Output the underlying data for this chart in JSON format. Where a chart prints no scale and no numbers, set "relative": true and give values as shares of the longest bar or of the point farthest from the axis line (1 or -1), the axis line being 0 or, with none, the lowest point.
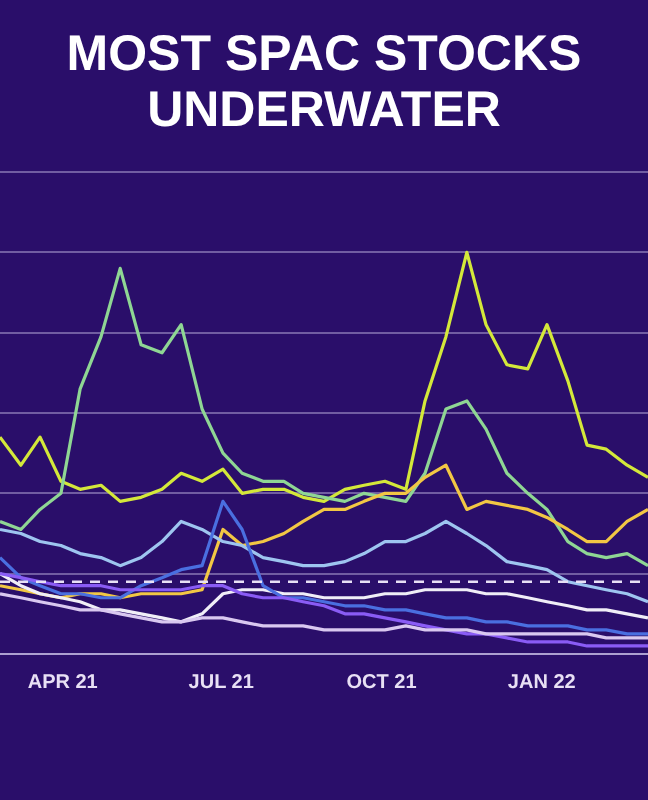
{
  "chart_data": {
    "type": "line",
    "title": "MOST SPAC STOCKS UNDERWATER",
    "relative": true,
    "grid": "y",
    "legend": false,
    "marker": "none",
    "line_style": "solid",
    "x": [
      "2021-02-24",
      "2021-03-08",
      "2021-03-19",
      "2021-03-31",
      "2021-04-11",
      "2021-04-23",
      "2021-05-04",
      "2021-05-16",
      "2021-05-28",
      "2021-06-08",
      "2021-06-20",
      "2021-07-02",
      "2021-07-13",
      "2021-07-25",
      "2021-08-06",
      "2021-08-17",
      "2021-08-29",
      "2021-09-10",
      "2021-09-21",
      "2021-10-03",
      "2021-10-15",
      "2021-10-26",
      "2021-11-07",
      "2021-11-19",
      "2021-11-30",
      "2021-12-12",
      "2021-12-24",
      "2022-01-04",
      "2022-01-16",
      "2022-01-27",
      "2022-02-07",
      "2022-02-19",
      "2022-03-03"
    ],
    "xlim": [
      "2021-02-24",
      "2022-03-03"
    ],
    "xticks": [
      {
        "value": "2021-04-01",
        "label": "APR 21"
      },
      {
        "value": "2021-07-01",
        "label": "JUL 21"
      },
      {
        "value": "2021-10-01",
        "label": "OCT 21"
      },
      {
        "value": "2022-01-01",
        "label": "JAN 22"
      }
    ],
    "series": [
      {
        "color": "#d9c8f0",
        "values": [
          0.15,
          0.14,
          0.13,
          0.12,
          0.11,
          0.11,
          0.1,
          0.09,
          0.08,
          0.08,
          0.09,
          0.09,
          0.08,
          0.07,
          0.07,
          0.07,
          0.06,
          0.06,
          0.06,
          0.06,
          0.07,
          0.06,
          0.06,
          0.06,
          0.05,
          0.05,
          0.05,
          0.05,
          0.05,
          0.05,
          0.04,
          0.04,
          0.04
        ]
      },
      {
        "color": "#8a5cf5",
        "values": [
          0.2,
          0.19,
          0.18,
          0.17,
          0.17,
          0.17,
          0.16,
          0.16,
          0.16,
          0.16,
          0.17,
          0.17,
          0.15,
          0.14,
          0.14,
          0.13,
          0.12,
          0.1,
          0.1,
          0.09,
          0.08,
          0.07,
          0.06,
          0.05,
          0.05,
          0.04,
          0.03,
          0.03,
          0.03,
          0.02,
          0.02,
          0.02,
          0.02
        ]
      },
      {
        "color": "#4a6fe0",
        "values": [
          0.24,
          0.19,
          0.17,
          0.15,
          0.15,
          0.14,
          0.14,
          0.17,
          0.19,
          0.21,
          0.22,
          0.38,
          0.31,
          0.17,
          0.14,
          0.14,
          0.13,
          0.12,
          0.12,
          0.11,
          0.11,
          0.1,
          0.09,
          0.09,
          0.08,
          0.08,
          0.07,
          0.07,
          0.07,
          0.06,
          0.06,
          0.05,
          0.05
        ]
      },
      {
        "color": "#f0eef7",
        "values": [
          0.2,
          0.17,
          0.15,
          0.14,
          0.13,
          0.11,
          0.11,
          0.1,
          0.09,
          0.08,
          0.1,
          0.15,
          0.16,
          0.16,
          0.15,
          0.15,
          0.14,
          0.14,
          0.14,
          0.15,
          0.15,
          0.16,
          0.16,
          0.16,
          0.15,
          0.15,
          0.14,
          0.13,
          0.12,
          0.11,
          0.11,
          0.1,
          0.09
        ]
      },
      {
        "color": "#9ec5f0",
        "values": [
          0.31,
          0.3,
          0.28,
          0.27,
          0.25,
          0.24,
          0.22,
          0.24,
          0.28,
          0.33,
          0.31,
          0.28,
          0.27,
          0.24,
          0.23,
          0.22,
          0.22,
          0.23,
          0.25,
          0.28,
          0.28,
          0.3,
          0.33,
          0.3,
          0.27,
          0.23,
          0.22,
          0.21,
          0.18,
          0.17,
          0.16,
          0.15,
          0.13
        ]
      },
      {
        "color": "#f2c744",
        "values": [
          0.17,
          0.16,
          0.15,
          0.14,
          0.15,
          0.15,
          0.14,
          0.15,
          0.15,
          0.15,
          0.16,
          0.31,
          0.27,
          0.28,
          0.3,
          0.33,
          0.36,
          0.36,
          0.38,
          0.4,
          0.4,
          0.44,
          0.47,
          0.36,
          0.38,
          0.37,
          0.36,
          0.34,
          0.31,
          0.28,
          0.28,
          0.33,
          0.36
        ]
      },
      {
        "color": "#8fd694",
        "values": [
          0.33,
          0.31,
          0.36,
          0.4,
          0.66,
          0.79,
          0.96,
          0.77,
          0.75,
          0.82,
          0.61,
          0.5,
          0.45,
          0.43,
          0.43,
          0.4,
          0.39,
          0.38,
          0.4,
          0.39,
          0.38,
          0.45,
          0.61,
          0.63,
          0.56,
          0.45,
          0.4,
          0.36,
          0.28,
          0.25,
          0.24,
          0.25,
          0.22
        ]
      },
      {
        "color": "#d4e83a",
        "values": [
          0.54,
          0.47,
          0.54,
          0.43,
          0.41,
          0.42,
          0.38,
          0.39,
          0.41,
          0.45,
          0.43,
          0.46,
          0.4,
          0.41,
          0.41,
          0.39,
          0.38,
          0.41,
          0.42,
          0.43,
          0.41,
          0.63,
          0.79,
          1.0,
          0.82,
          0.72,
          0.71,
          0.82,
          0.68,
          0.52,
          0.51,
          0.47,
          0.44
        ]
      }
    ],
    "ref_lines": [
      {
        "axis": "y",
        "value": 0.18,
        "color": "#e8e0f5",
        "line_style": "dashed"
      }
    ]
  }
}
